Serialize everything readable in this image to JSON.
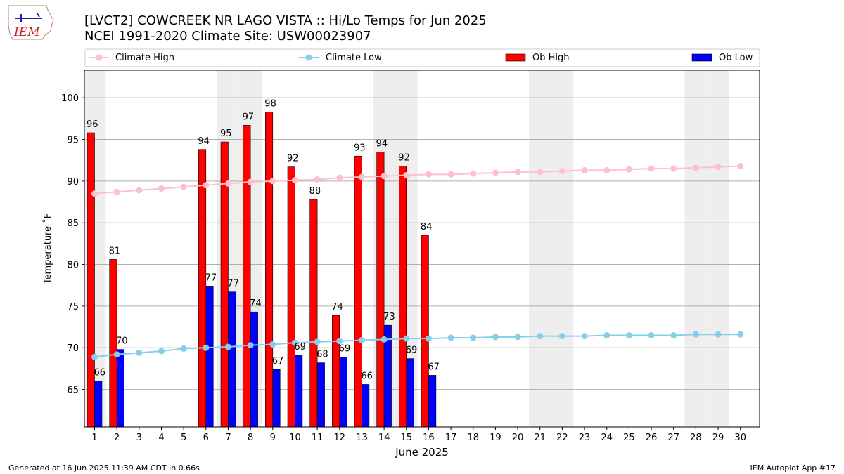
{
  "header": {
    "title_line1": "[LVCT2] COWCREEK NR LAGO VISTA :: Hi/Lo Temps for Jun 2025",
    "title_line2": "NCEI 1991-2020 Climate Site: USW00023907",
    "logo_text": "IEM"
  },
  "footer": {
    "generated": "Generated at 16 Jun 2025 11:39 AM CDT in 0.66s",
    "app": "IEM Autoplot App #17"
  },
  "colors": {
    "climate_high": "#ffc0cb",
    "climate_low": "#87ceeb",
    "ob_high": "#ff0000",
    "ob_low": "#0000ff",
    "weekend_shade": "#eeeeee",
    "grid": "#b0b0b0"
  },
  "chart_data": {
    "type": "bar",
    "xlabel": "June 2025",
    "ylabel": "Temperature ˚F",
    "ylim": [
      60.5,
      103.3
    ],
    "yticks": [
      65,
      70,
      75,
      80,
      85,
      90,
      95,
      100
    ],
    "grid": "horizontal",
    "legend_position": "top",
    "days": [
      1,
      2,
      3,
      4,
      5,
      6,
      7,
      8,
      9,
      10,
      11,
      12,
      13,
      14,
      15,
      16,
      17,
      18,
      19,
      20,
      21,
      22,
      23,
      24,
      25,
      26,
      27,
      28,
      29,
      30
    ],
    "weekend_days": [
      1,
      7,
      8,
      14,
      15,
      21,
      22,
      28,
      29
    ],
    "series": [
      {
        "name": "Climate High",
        "kind": "line",
        "values": [
          88.5,
          88.7,
          88.9,
          89.1,
          89.3,
          89.5,
          89.7,
          89.9,
          90.0,
          90.1,
          90.2,
          90.4,
          90.5,
          90.6,
          90.7,
          90.8,
          90.8,
          90.9,
          91.0,
          91.1,
          91.1,
          91.2,
          91.3,
          91.3,
          91.4,
          91.5,
          91.5,
          91.6,
          91.7,
          91.8
        ]
      },
      {
        "name": "Climate Low",
        "kind": "line",
        "values": [
          68.9,
          69.2,
          69.4,
          69.6,
          69.9,
          70.0,
          70.1,
          70.3,
          70.4,
          70.6,
          70.7,
          70.8,
          70.9,
          71.0,
          71.1,
          71.1,
          71.2,
          71.2,
          71.3,
          71.3,
          71.4,
          71.4,
          71.4,
          71.5,
          71.5,
          71.5,
          71.5,
          71.6,
          71.6,
          71.6
        ]
      },
      {
        "name": "Ob High",
        "kind": "bar",
        "values": [
          95.8,
          80.6,
          null,
          null,
          null,
          93.8,
          94.7,
          96.7,
          98.3,
          91.7,
          87.8,
          73.9,
          93.0,
          93.5,
          91.8,
          83.5,
          null,
          null,
          null,
          null,
          null,
          null,
          null,
          null,
          null,
          null,
          null,
          null,
          null,
          null
        ],
        "labels": [
          "96",
          "81",
          "",
          "",
          "",
          "94",
          "95",
          "97",
          "98",
          "92",
          "88",
          "74",
          "93",
          "94",
          "92",
          "84",
          "",
          "",
          "",
          "",
          "",
          "",
          "",
          "",
          "",
          "",
          "",
          "",
          "",
          ""
        ]
      },
      {
        "name": "Ob Low",
        "kind": "bar",
        "values": [
          66.0,
          69.8,
          null,
          null,
          null,
          77.4,
          76.7,
          74.3,
          67.4,
          69.1,
          68.2,
          68.9,
          65.6,
          72.7,
          68.7,
          66.7,
          null,
          null,
          null,
          null,
          null,
          null,
          null,
          null,
          null,
          null,
          null,
          null,
          null,
          null
        ],
        "labels": [
          "66",
          "70",
          "",
          "",
          "",
          "77",
          "77",
          "74",
          "67",
          "69",
          "68",
          "69",
          "66",
          "73",
          "69",
          "67",
          "",
          "",
          "",
          "",
          "",
          "",
          "",
          "",
          "",
          "",
          "",
          "",
          "",
          ""
        ]
      }
    ]
  }
}
